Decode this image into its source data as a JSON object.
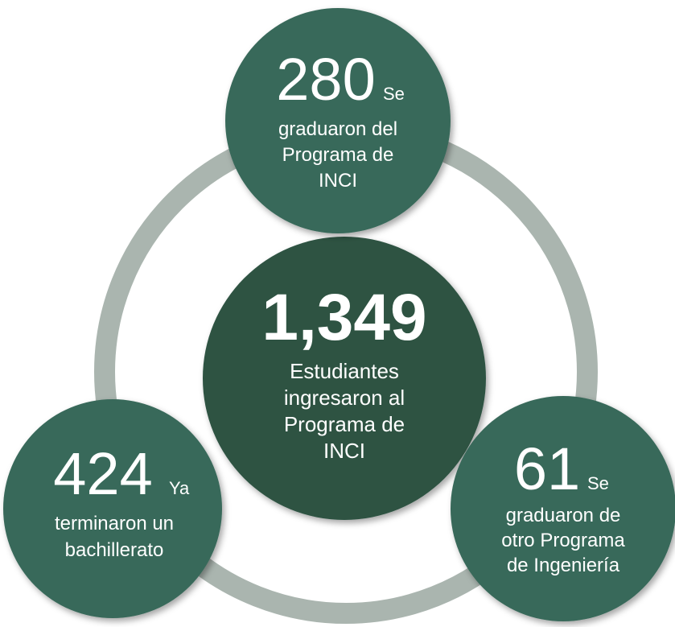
{
  "nodes": [
    {
      "number": "1,349",
      "lines": [
        "Estudiantes",
        "ingresaron al",
        "Programa de",
        "INCI"
      ]
    },
    {
      "number": "280",
      "suffix": "Se",
      "lines": [
        "graduaron del",
        "Programa de",
        "INCI"
      ]
    },
    {
      "number": "424",
      "suffix": "Ya",
      "lines": [
        "terminaron un",
        "bachillerato"
      ]
    },
    {
      "number": "61",
      "suffix": "Se",
      "lines": [
        "graduaron de",
        "otro Programa",
        "de Ingeniería"
      ]
    }
  ]
}
